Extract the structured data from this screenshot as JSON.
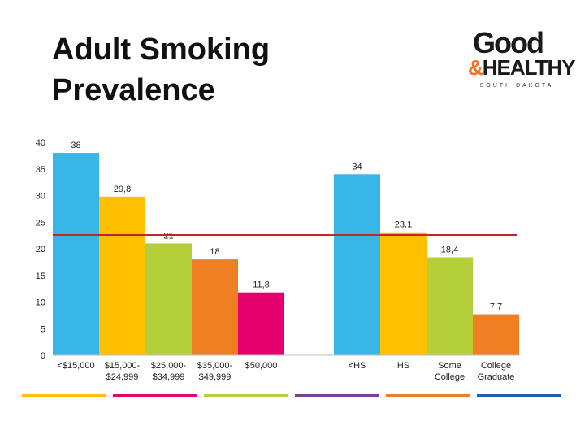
{
  "title_lines": [
    "Adult Smoking",
    "Prevalence"
  ],
  "logo": {
    "good": "Good",
    "healthy_amp": "&",
    "healthy_word": "HEALTHY",
    "subtitle": "SOUTH DAKOTA"
  },
  "chart_data": {
    "type": "bar",
    "title": "Adult Smoking Prevalence",
    "ylim": [
      0,
      40
    ],
    "yticks": [
      0,
      5,
      10,
      15,
      20,
      25,
      30,
      35,
      40
    ],
    "grid": false,
    "reference_line": {
      "value": 22.6,
      "color": "#c0272d"
    },
    "groups": [
      {
        "bars": [
          {
            "label": [
              "<$15,000"
            ],
            "value": 38,
            "display": "38",
            "color": "#38b6e8"
          },
          {
            "label": [
              "$15,000-",
              "$24,999"
            ],
            "value": 29.8,
            "display": "29,8",
            "color": "#ffc000"
          },
          {
            "label": [
              "$25,000-",
              "$34,999"
            ],
            "value": 21,
            "display": "21",
            "color": "#b5cf3b"
          },
          {
            "label": [
              "$35,000-",
              "$49,999"
            ],
            "value": 18,
            "display": "18",
            "color": "#f07f24"
          },
          {
            "label": [
              "$50,000"
            ],
            "value": 11.8,
            "display": "11,8",
            "color": "#e6006e"
          }
        ]
      },
      {
        "bars": [
          {
            "label": [
              "<HS"
            ],
            "value": 34,
            "display": "34",
            "color": "#38b6e8"
          },
          {
            "label": [
              "HS"
            ],
            "value": 23.1,
            "display": "23,1",
            "color": "#ffc000"
          },
          {
            "label": [
              "Some",
              "College"
            ],
            "value": 18.4,
            "display": "18,4",
            "color": "#b5cf3b"
          },
          {
            "label": [
              "College",
              "Graduate"
            ],
            "value": 7.7,
            "display": "7,7",
            "color": "#f07f24"
          }
        ]
      }
    ]
  },
  "footer_colors": [
    "#ffc000",
    "#e6006e",
    "#b5cf3b",
    "#7b3f98",
    "#f07f24",
    "#1f5fae"
  ]
}
